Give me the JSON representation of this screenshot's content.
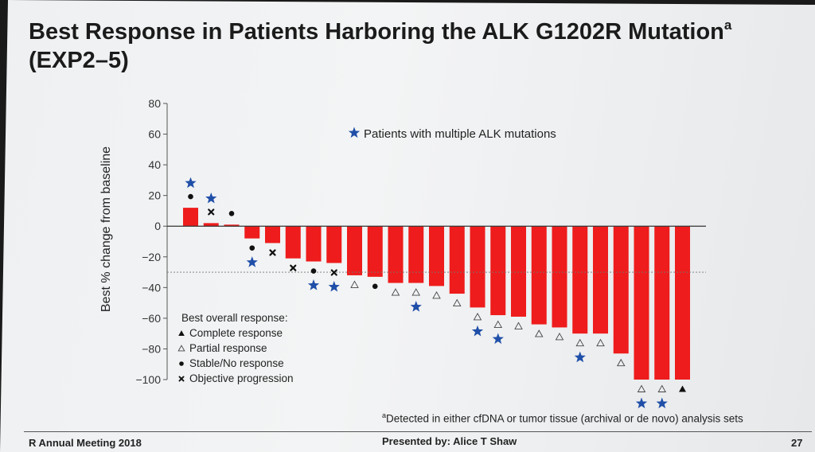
{
  "slide": {
    "title_main": "Best Response in Patients Harboring the ALK G1202R Mutation",
    "title_sup": "a",
    "title_tail": " (EXP2–5)",
    "footnote_sup": "a",
    "footnote_text": "Detected in either cfDNA or tumor tissue (archival or de novo) analysis sets",
    "footer_left": "R Annual Meeting 2018",
    "footer_center": "Presented by: Alice T Shaw",
    "footer_right": "27"
  },
  "colors": {
    "bar": "#ee1c1c",
    "star": "#1f4fa8",
    "marker": "#111111",
    "axis": "#555555"
  },
  "chart_data": {
    "type": "bar",
    "ylabel": "Best % change from baseline",
    "ylim": [
      -100,
      80
    ],
    "yticks": [
      80,
      60,
      40,
      20,
      0,
      -20,
      -40,
      -60,
      -80,
      -100
    ],
    "ytick_labels": [
      "80",
      "60",
      "40",
      "20",
      "0",
      "−20",
      "−40",
      "−60",
      "−80",
      "−100"
    ],
    "reference_line": -30,
    "values": [
      12,
      2,
      1,
      -8,
      -11,
      -21,
      -23,
      -24,
      -32,
      -33,
      -37,
      -37,
      -39,
      -44,
      -53,
      -58,
      -59,
      -64,
      -66,
      -70,
      -70,
      -83,
      -100,
      -100,
      -100
    ],
    "response": [
      "stable",
      "progression",
      "stable",
      "stable",
      "progression",
      "progression",
      "stable",
      "progression",
      "partial",
      "stable",
      "partial",
      "partial",
      "partial",
      "partial",
      "partial",
      "partial",
      "partial",
      "partial",
      "partial",
      "partial",
      "partial",
      "partial",
      "partial",
      "partial",
      "complete"
    ],
    "multiple_alk_mutations": [
      true,
      true,
      false,
      true,
      false,
      false,
      true,
      true,
      false,
      false,
      false,
      true,
      false,
      false,
      true,
      true,
      false,
      false,
      false,
      true,
      false,
      false,
      true,
      true,
      false
    ],
    "star_legend": "Patients with multiple ALK mutations",
    "legend_title": "Best overall response:",
    "legend_items": [
      {
        "key": "complete",
        "label": "Complete response"
      },
      {
        "key": "partial",
        "label": "Partial response"
      },
      {
        "key": "stable",
        "label": "Stable/No response"
      },
      {
        "key": "progression",
        "label": "Objective progression"
      }
    ]
  }
}
